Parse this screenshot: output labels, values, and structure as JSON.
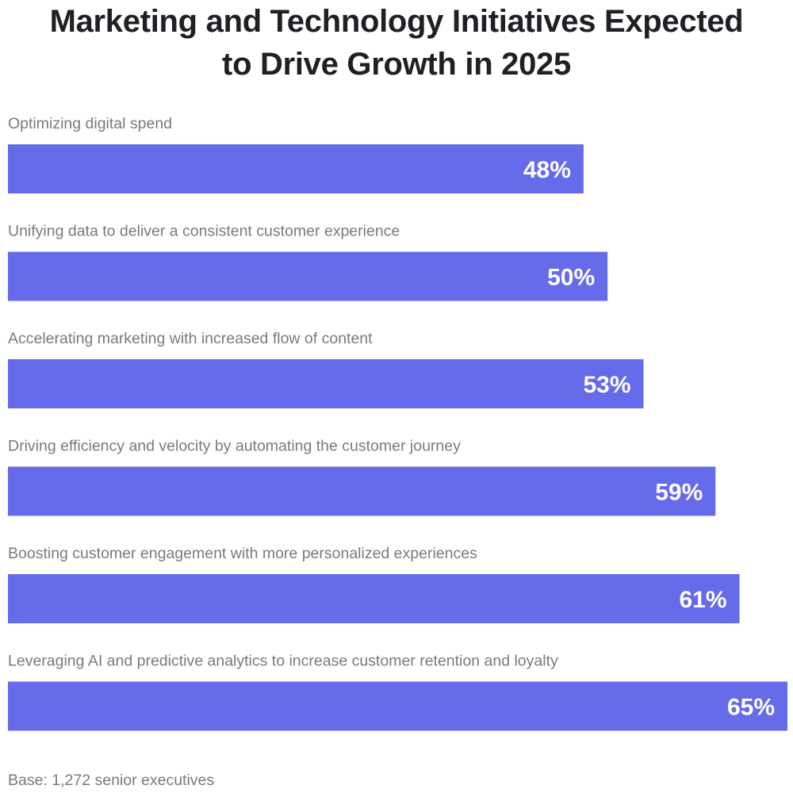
{
  "chart_data": {
    "type": "bar",
    "orientation": "horizontal",
    "title": "Marketing and Technology Initiatives Expected to Drive Growth in 2025",
    "title_lines": [
      "Marketing and Technology Initiatives Expected",
      "to Drive Growth in 2025"
    ],
    "categories": [
      "Optimizing digital spend",
      "Unifying data to deliver a consistent customer experience",
      "Accelerating marketing with increased flow of content",
      "Driving efficiency and velocity by automating the customer journey",
      "Boosting customer engagement with more personalized experiences",
      "Leveraging AI and predictive analytics to increase customer retention and loyalty"
    ],
    "values": [
      48,
      50,
      53,
      59,
      61,
      65
    ],
    "value_labels": [
      "48%",
      "50%",
      "53%",
      "59%",
      "61%",
      "65%"
    ],
    "unit": "%",
    "xlim": [
      0,
      65
    ],
    "grid": false,
    "legend": "none",
    "bar_color": "#666bea",
    "footnote": "Base: 1,272 senior executives"
  }
}
